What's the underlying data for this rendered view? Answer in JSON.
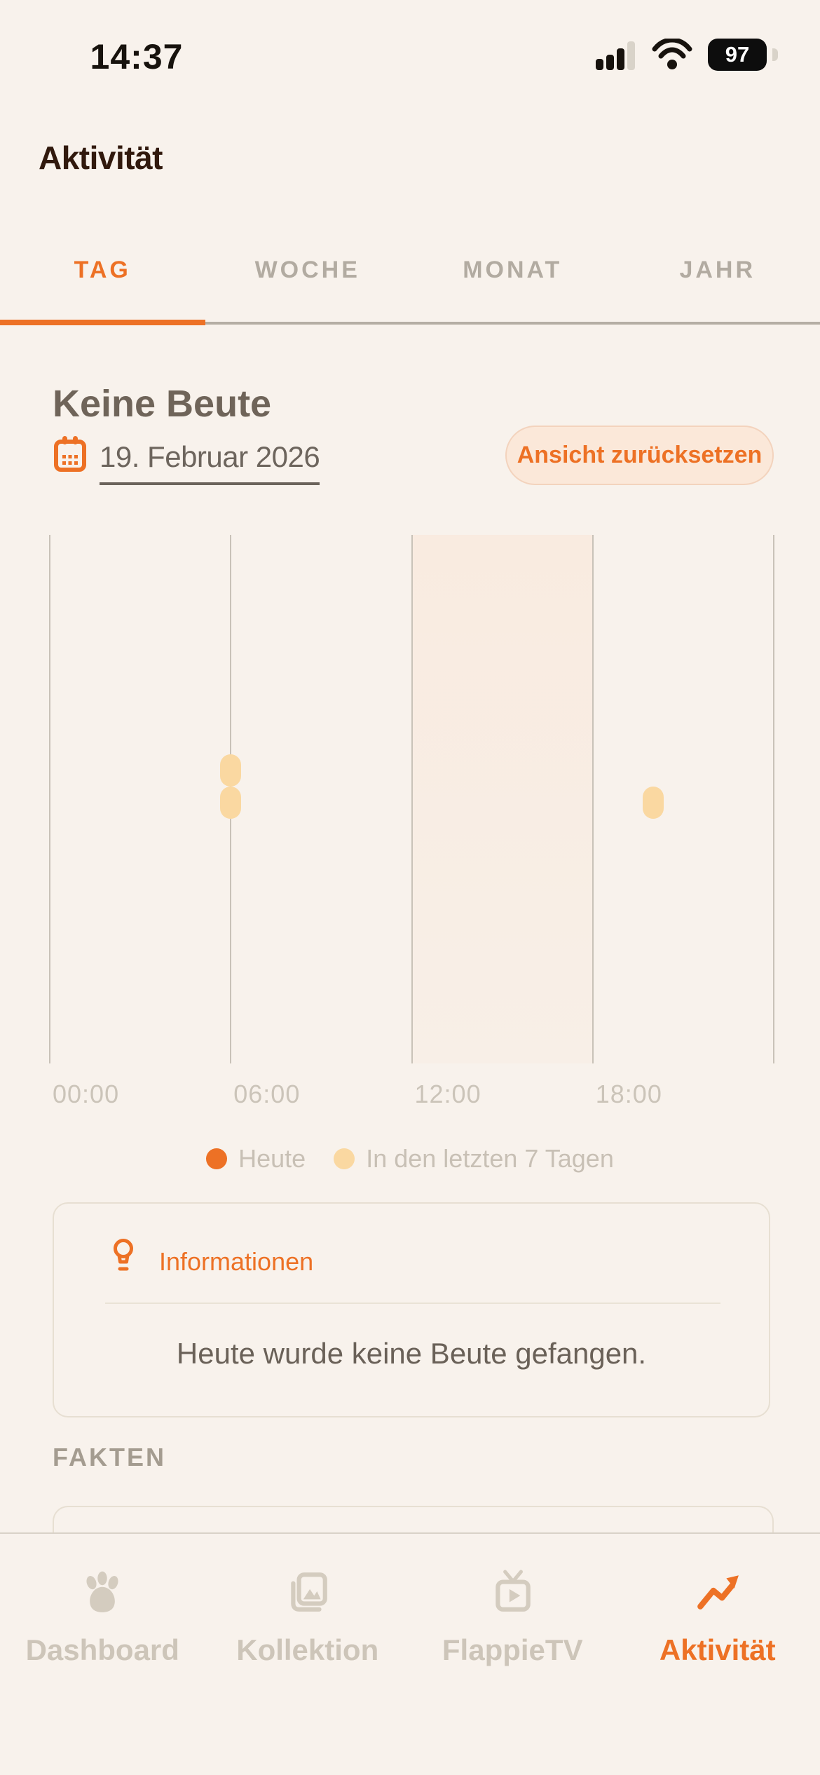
{
  "status_bar": {
    "time": "14:37",
    "battery_percent": "97"
  },
  "header": {
    "title": "Aktivität"
  },
  "tabs": {
    "items": [
      {
        "label": "TAG"
      },
      {
        "label": "WOCHE"
      },
      {
        "label": "MONAT"
      },
      {
        "label": "JAHR"
      }
    ],
    "active_index": 0
  },
  "day_view": {
    "heading": "Keine Beute",
    "date_label": "19. Februar 2026",
    "reset_button_label": "Ansicht zurücksetzen"
  },
  "chart": {
    "type": "time-of-day-event-scatter",
    "axis": {
      "min_hour": 0,
      "max_hour": 24,
      "gridline_hours": [
        0,
        6,
        12,
        18,
        24
      ],
      "tick_labels": [
        {
          "hour": 0,
          "text": "00:00"
        },
        {
          "hour": 6,
          "text": "06:00"
        },
        {
          "hour": 12,
          "text": "12:00"
        },
        {
          "hour": 18,
          "text": "18:00"
        }
      ]
    },
    "highlight_band": {
      "start_hour": 12,
      "end_hour": 18
    },
    "series": [
      {
        "name": "Heute",
        "color": "#ED7125",
        "events": []
      },
      {
        "name": "In den letzten 7 Tagen",
        "color": "#FAD8A1",
        "events": [
          {
            "hour": 6,
            "row": 1
          },
          {
            "hour": 6,
            "row": 0
          },
          {
            "hour": 20,
            "row": 0
          }
        ]
      }
    ],
    "legend": [
      {
        "label": "Heute",
        "color": "#ED7125"
      },
      {
        "label": "In den letzten 7 Tagen",
        "color": "#FAD8A1"
      }
    ]
  },
  "info_card": {
    "title": "Informationen",
    "body": "Heute wurde keine Beute gefangen."
  },
  "facts": {
    "section_label": "FAKTEN"
  },
  "nav": {
    "items": [
      {
        "label": "Dashboard"
      },
      {
        "label": "Kollektion"
      },
      {
        "label": "FlappieTV"
      },
      {
        "label": "Aktivität"
      }
    ],
    "active_index": 3
  },
  "colors": {
    "background": "#F8F2EC",
    "accent_orange": "#ED7125",
    "highlight_band": "#F8EBE1",
    "event_dot": "#FAD8A1",
    "gridline": "#C9C2B8",
    "inactive_tab_gray": "#B2ABA1",
    "nav_inactive_gray": "#CDC5B9"
  }
}
